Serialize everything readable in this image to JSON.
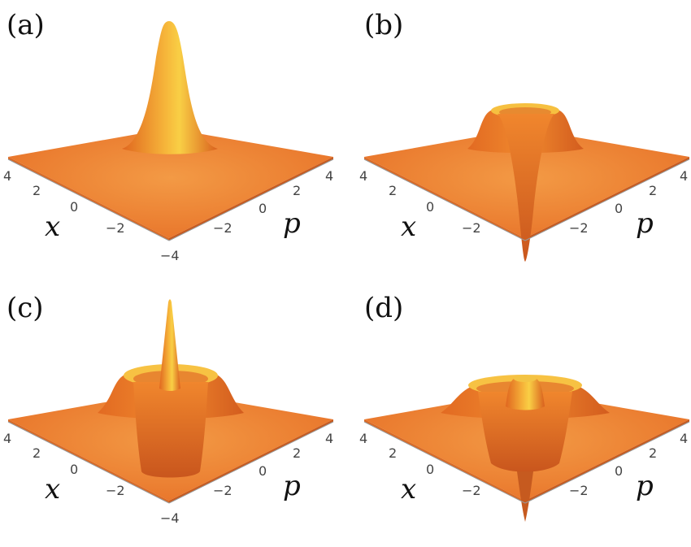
{
  "chart_data": [
    {
      "type": "surface3d",
      "panel_label": "(a)",
      "xlabel": "x",
      "ylabel": "p",
      "x_ticks": [
        "4",
        "2",
        "0",
        "−2",
        "−4"
      ],
      "p_ticks": [
        "−2",
        "0",
        "2",
        "4"
      ],
      "xlim": [
        -4,
        4
      ],
      "plim": [
        -4,
        4
      ],
      "surface": {
        "shape": "gaussian-peak",
        "center_value": 1.0,
        "ring_radius": 0,
        "ring_value": 0
      },
      "color": "#e8742a"
    },
    {
      "type": "surface3d",
      "panel_label": "(b)",
      "xlabel": "x",
      "ylabel": "p",
      "x_ticks": [
        "4",
        "2",
        "0",
        "−2"
      ],
      "p_ticks": [
        "−2",
        "0",
        "2",
        "4"
      ],
      "xlim": [
        -4,
        4
      ],
      "plim": [
        -4,
        4
      ],
      "surface": {
        "shape": "negative-dip-with-ring",
        "center_value": -1.0,
        "ring_radius": 1.5,
        "ring_value": 0.35
      },
      "color": "#e8742a"
    },
    {
      "type": "surface3d",
      "panel_label": "(c)",
      "xlabel": "x",
      "ylabel": "p",
      "x_ticks": [
        "4",
        "2",
        "0",
        "−2",
        "−4"
      ],
      "p_ticks": [
        "−2",
        "0",
        "2",
        "4"
      ],
      "xlim": [
        -4,
        4
      ],
      "plim": [
        -4,
        4
      ],
      "surface": {
        "shape": "spike-in-well",
        "center_value": 1.0,
        "ring_radius": 1.8,
        "ring_value": 0.3
      },
      "color": "#e8742a"
    },
    {
      "type": "surface3d",
      "panel_label": "(d)",
      "xlabel": "x",
      "ylabel": "p",
      "x_ticks": [
        "4",
        "2",
        "0",
        "−2"
      ],
      "p_ticks": [
        "−2",
        "0",
        "2",
        "4"
      ],
      "xlim": [
        -4,
        4
      ],
      "plim": [
        -4,
        4
      ],
      "surface": {
        "shape": "double-ring-with-dip",
        "center_value": -1.0,
        "ring_radius": 2.2,
        "ring_value": 0.2
      },
      "color": "#e8742a"
    }
  ],
  "colors": {
    "surface_base": "#e8742a",
    "surface_light": "#f7b13a",
    "surface_highlight": "#f9d44a",
    "surface_shadow": "#c5561d",
    "bottom": "#8a4a2a"
  }
}
